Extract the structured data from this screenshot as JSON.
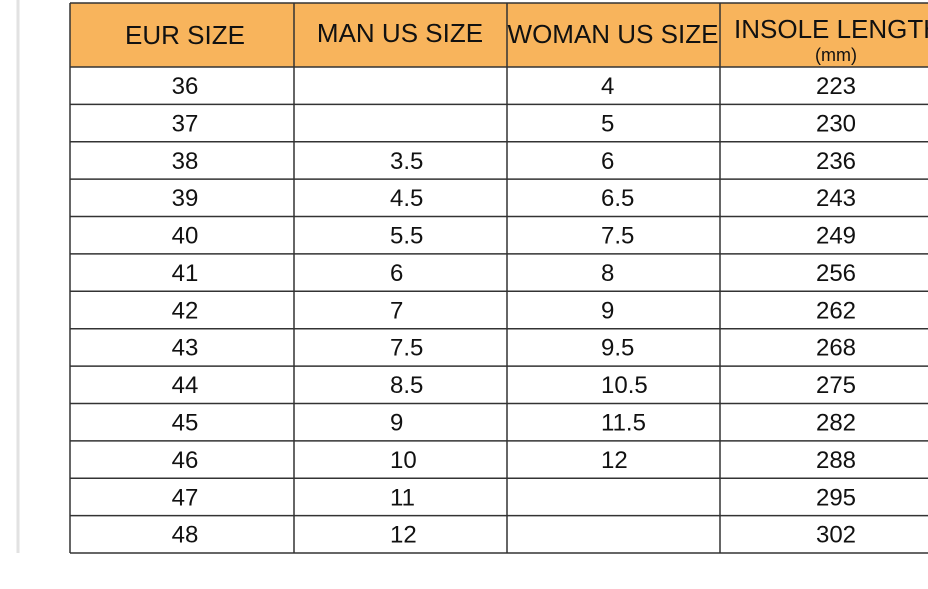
{
  "table": {
    "headers": [
      "EUR SIZE",
      "MAN US SIZE",
      "WOMAN US SIZE",
      "INSOLE  LENGTH"
    ],
    "unit": "(mm)",
    "rows": [
      [
        "36",
        null,
        "4",
        "223"
      ],
      [
        "37",
        null,
        "5",
        "230"
      ],
      [
        "38",
        "3.5",
        "6",
        "236"
      ],
      [
        "39",
        "4.5",
        "6.5",
        "243"
      ],
      [
        "40",
        "5.5",
        "7.5",
        "249"
      ],
      [
        "41",
        "6",
        "8",
        "256"
      ],
      [
        "42",
        "7",
        "9",
        "262"
      ],
      [
        "43",
        "7.5",
        "9.5",
        "268"
      ],
      [
        "44",
        "8.5",
        "10.5",
        "275"
      ],
      [
        "45",
        "9",
        "11.5",
        "282"
      ],
      [
        "46",
        "10",
        "12",
        "288"
      ],
      [
        "47",
        "11",
        null,
        "295"
      ],
      [
        "48",
        "12",
        null,
        "302"
      ]
    ]
  }
}
